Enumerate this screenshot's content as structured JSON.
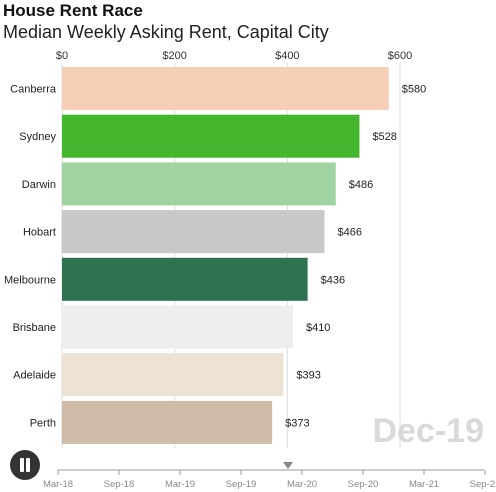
{
  "title": "House Rent Race",
  "subtitle": "Median Weekly Asking Rent, Capital City",
  "current_period": "Dec-19",
  "player": {
    "state": "pause-icon"
  },
  "timeline": {
    "labels": [
      "Mar-18",
      "Sep-18",
      "Mar-19",
      "Sep-19",
      "Mar-20",
      "Sep-20",
      "Mar-21",
      "Sep-21"
    ],
    "position_fraction": 0.54
  },
  "chart_data": {
    "type": "bar",
    "orientation": "horizontal",
    "xlim": [
      0,
      600
    ],
    "x_ticks": [
      0,
      200,
      400,
      600
    ],
    "x_tick_labels": [
      "$0",
      "$200",
      "$400",
      "$600"
    ],
    "categories": [
      "Canberra",
      "Sydney",
      "Darwin",
      "Hobart",
      "Melbourne",
      "Brisbane",
      "Adelaide",
      "Perth"
    ],
    "values": [
      580,
      528,
      486,
      466,
      436,
      410,
      393,
      373
    ],
    "value_labels": [
      "$580",
      "$528",
      "$486",
      "$466",
      "$436",
      "$410",
      "$393",
      "$373"
    ],
    "colors": [
      "#f6d0b6",
      "#44b62e",
      "#9fd4a2",
      "#c8c8c8",
      "#2e7251",
      "#eeeeee",
      "#ece3d5",
      "#cfbba8"
    ],
    "grid": true
  }
}
